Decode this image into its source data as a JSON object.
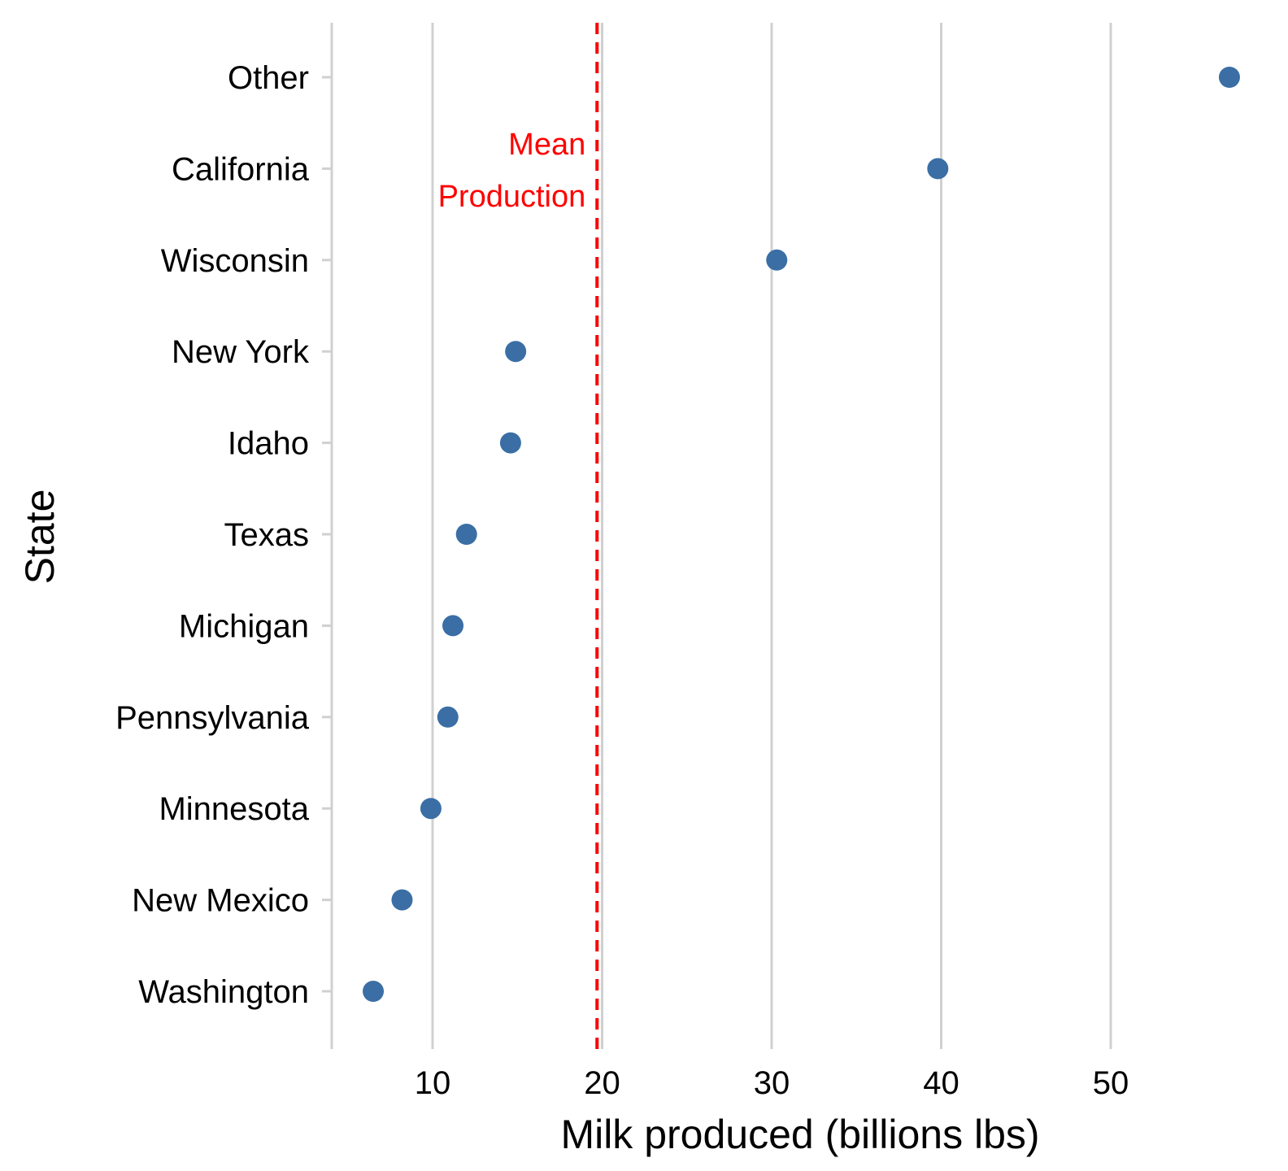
{
  "chart_data": {
    "type": "scatter",
    "title": "",
    "xlabel": "Milk produced (billions lbs)",
    "ylabel": "State",
    "xlim": [
      4.0,
      60.0
    ],
    "x_ticks": [
      10,
      20,
      30,
      40,
      50
    ],
    "grid": "vertical-major",
    "legend": "none",
    "categories": [
      "Other",
      "California",
      "Wisconsin",
      "New York",
      "Idaho",
      "Texas",
      "Michigan",
      "Pennsylvania",
      "Minnesota",
      "New Mexico",
      "Washington"
    ],
    "series": [
      {
        "values": [
          57.0,
          39.8,
          30.3,
          14.9,
          14.6,
          12.0,
          11.2,
          10.9,
          9.9,
          8.2,
          6.5
        ]
      }
    ],
    "reference_line": {
      "x": 19.7,
      "label_lines": [
        "Mean",
        "Production"
      ]
    },
    "colors": {
      "point": "#3a6ea5",
      "reference_line": "#ff0000",
      "grid": "#d0d0d0",
      "axis_line": "#d0d0d0",
      "text": "#000000"
    }
  }
}
